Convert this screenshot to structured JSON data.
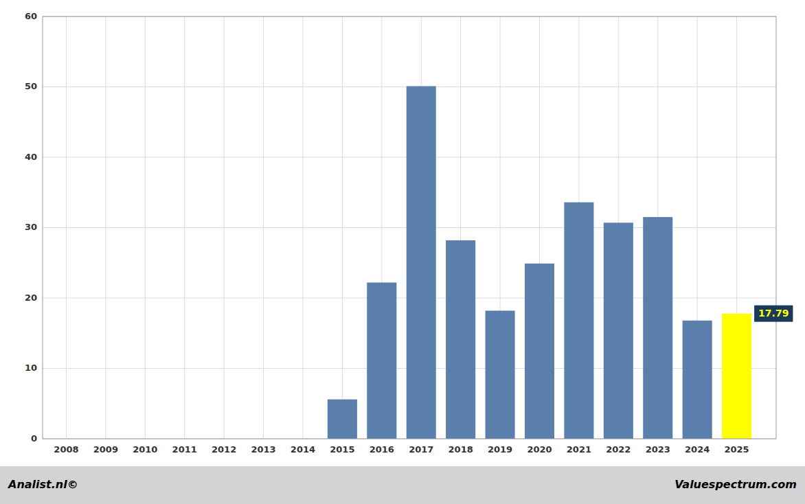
{
  "chart_data": {
    "type": "bar",
    "x": [
      2008,
      2009,
      2010,
      2011,
      2012,
      2013,
      2014,
      2015,
      2016,
      2017,
      2018,
      2019,
      2020,
      2021,
      2022,
      2023,
      2024,
      2025
    ],
    "values": [
      0,
      0,
      0,
      0,
      0,
      0,
      0,
      5.6,
      22.2,
      50.1,
      28.2,
      18.2,
      24.9,
      33.6,
      30.7,
      31.5,
      16.8,
      17.79
    ],
    "colors": [
      "#5b7fad",
      "#5b7fad",
      "#5b7fad",
      "#5b7fad",
      "#5b7fad",
      "#5b7fad",
      "#5b7fad",
      "#5b7fad",
      "#5b7fad",
      "#5b7fad",
      "#5b7fad",
      "#5b7fad",
      "#5b7fad",
      "#5b7fad",
      "#5b7fad",
      "#5b7fad",
      "#5b7fad",
      "#ffff00"
    ],
    "xlim": [
      2007.4,
      2026.0
    ],
    "xticks": [
      2008,
      2009,
      2010,
      2011,
      2012,
      2013,
      2014,
      2015,
      2016,
      2017,
      2018,
      2019,
      2020,
      2021,
      2022,
      2023,
      2024,
      2025
    ],
    "ylim": [
      0,
      60
    ],
    "yticks": [
      0,
      10,
      20,
      30,
      40,
      50,
      60
    ],
    "grid": true,
    "annotations": [
      {
        "text": "17.79",
        "x": 2025,
        "y": 17.79
      },
      {
        "text": "Analist.nl©"
      },
      {
        "text": "Valuespectrum.com"
      }
    ]
  }
}
